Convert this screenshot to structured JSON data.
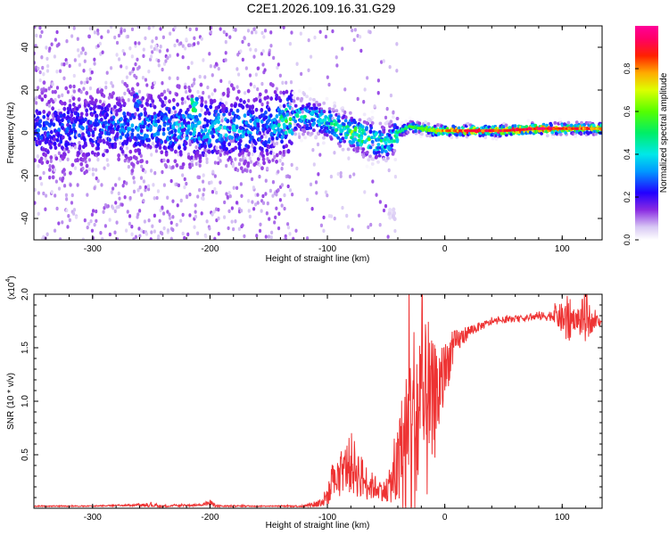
{
  "title": "C2E1.2026.109.16.31.G29",
  "chart_data": [
    {
      "type": "heatmap",
      "name": "spectrogram",
      "xlabel": "Height of straight line (km)",
      "ylabel": "Frequency (Hz)",
      "xlim": [
        -350,
        134
      ],
      "ylim": [
        -50,
        50
      ],
      "xticks": [
        -300,
        -200,
        -100,
        0,
        100
      ],
      "xtick_labels": [
        "-300",
        "-200",
        "-100",
        "0",
        "100"
      ],
      "yticks": [
        -40,
        -20,
        0,
        20,
        40
      ],
      "ytick_labels": [
        "-40",
        "-20",
        "0",
        "20",
        "40"
      ],
      "colorbar": {
        "label": "Normalized spectral amplitude",
        "range": [
          0,
          1
        ],
        "ticks": [
          0.0,
          0.2,
          0.4,
          0.6,
          0.8
        ],
        "tick_labels": [
          "0.0",
          "0.2",
          "0.4",
          "0.6",
          "0.8"
        ]
      },
      "ridge": {
        "x": [
          -350,
          -300,
          -250,
          -200,
          -150,
          -125,
          -110,
          -100,
          -90,
          -80,
          -70,
          -60,
          -50,
          -40,
          -30,
          -20,
          -10,
          0,
          20,
          50,
          80,
          100,
          134
        ],
        "freq": [
          2,
          2,
          3,
          2,
          3,
          8,
          7,
          5,
          2,
          0,
          -2,
          -4,
          -5,
          0,
          3,
          2,
          1,
          1,
          1,
          1,
          2,
          2,
          2
        ],
        "peak_amplitude": [
          0.15,
          0.15,
          0.2,
          0.25,
          0.2,
          0.45,
          0.4,
          0.45,
          0.5,
          0.6,
          0.55,
          0.5,
          0.45,
          0.5,
          0.55,
          0.6,
          0.7,
          0.8,
          0.9,
          0.95,
          0.95,
          0.9,
          0.85
        ]
      },
      "features": [
        {
          "x": -262,
          "freq": 15,
          "amplitude": 0.3
        },
        {
          "x": -213,
          "freq": 13,
          "amplitude": 0.55
        },
        {
          "x": -45,
          "freq": -38,
          "amplitude": 0.05
        }
      ]
    },
    {
      "type": "line",
      "name": "snr",
      "xlabel": "Height of straight line (km)",
      "ylabel": "SNR (10 * v/v)",
      "scale_label": "(x10",
      "scale_exponent": "4",
      "xlim": [
        -350,
        134
      ],
      "ylim": [
        0,
        2.0
      ],
      "xticks": [
        -300,
        -200,
        -100,
        0,
        100
      ],
      "xtick_labels": [
        "-300",
        "-200",
        "-100",
        "0",
        "100"
      ],
      "yticks": [
        0.5,
        1.0,
        1.5,
        2.0
      ],
      "ytick_labels": [
        "0.5",
        "1.0",
        "1.5",
        "2.0"
      ],
      "color": "#ee3333",
      "series": [
        {
          "name": "SNR",
          "x": [
            -350,
            -300,
            -260,
            -250,
            -240,
            -210,
            -200,
            -195,
            -150,
            -120,
            -105,
            -100,
            -95,
            -90,
            -85,
            -80,
            -75,
            -70,
            -65,
            -60,
            -55,
            -50,
            -45,
            -40,
            -35,
            -30,
            -25,
            -20,
            -15,
            -10,
            -5,
            0,
            5,
            10,
            20,
            30,
            40,
            50,
            60,
            70,
            80,
            90,
            95,
            100,
            105,
            110,
            115,
            120,
            125,
            134
          ],
          "mean": [
            0.02,
            0.02,
            0.03,
            0.03,
            0.02,
            0.03,
            0.05,
            0.02,
            0.02,
            0.02,
            0.05,
            0.12,
            0.22,
            0.3,
            0.38,
            0.42,
            0.35,
            0.28,
            0.22,
            0.2,
            0.18,
            0.15,
            0.25,
            0.35,
            0.55,
            0.7,
            0.8,
            0.9,
            0.85,
            0.95,
            1.1,
            1.25,
            1.45,
            1.55,
            1.65,
            1.7,
            1.74,
            1.76,
            1.77,
            1.78,
            1.79,
            1.8,
            1.8,
            1.77,
            1.75,
            1.78,
            1.75,
            1.8,
            1.74,
            1.75
          ],
          "spread": [
            0.005,
            0.005,
            0.01,
            0.02,
            0.01,
            0.01,
            0.03,
            0.01,
            0.005,
            0.01,
            0.05,
            0.1,
            0.15,
            0.2,
            0.2,
            0.3,
            0.25,
            0.2,
            0.15,
            0.12,
            0.1,
            0.1,
            0.2,
            0.4,
            0.7,
            1.0,
            1.0,
            1.0,
            0.8,
            0.6,
            0.45,
            0.3,
            0.2,
            0.12,
            0.06,
            0.04,
            0.03,
            0.03,
            0.03,
            0.03,
            0.04,
            0.05,
            0.1,
            0.15,
            0.25,
            0.1,
            0.15,
            0.25,
            0.1,
            0.03
          ]
        }
      ]
    }
  ]
}
